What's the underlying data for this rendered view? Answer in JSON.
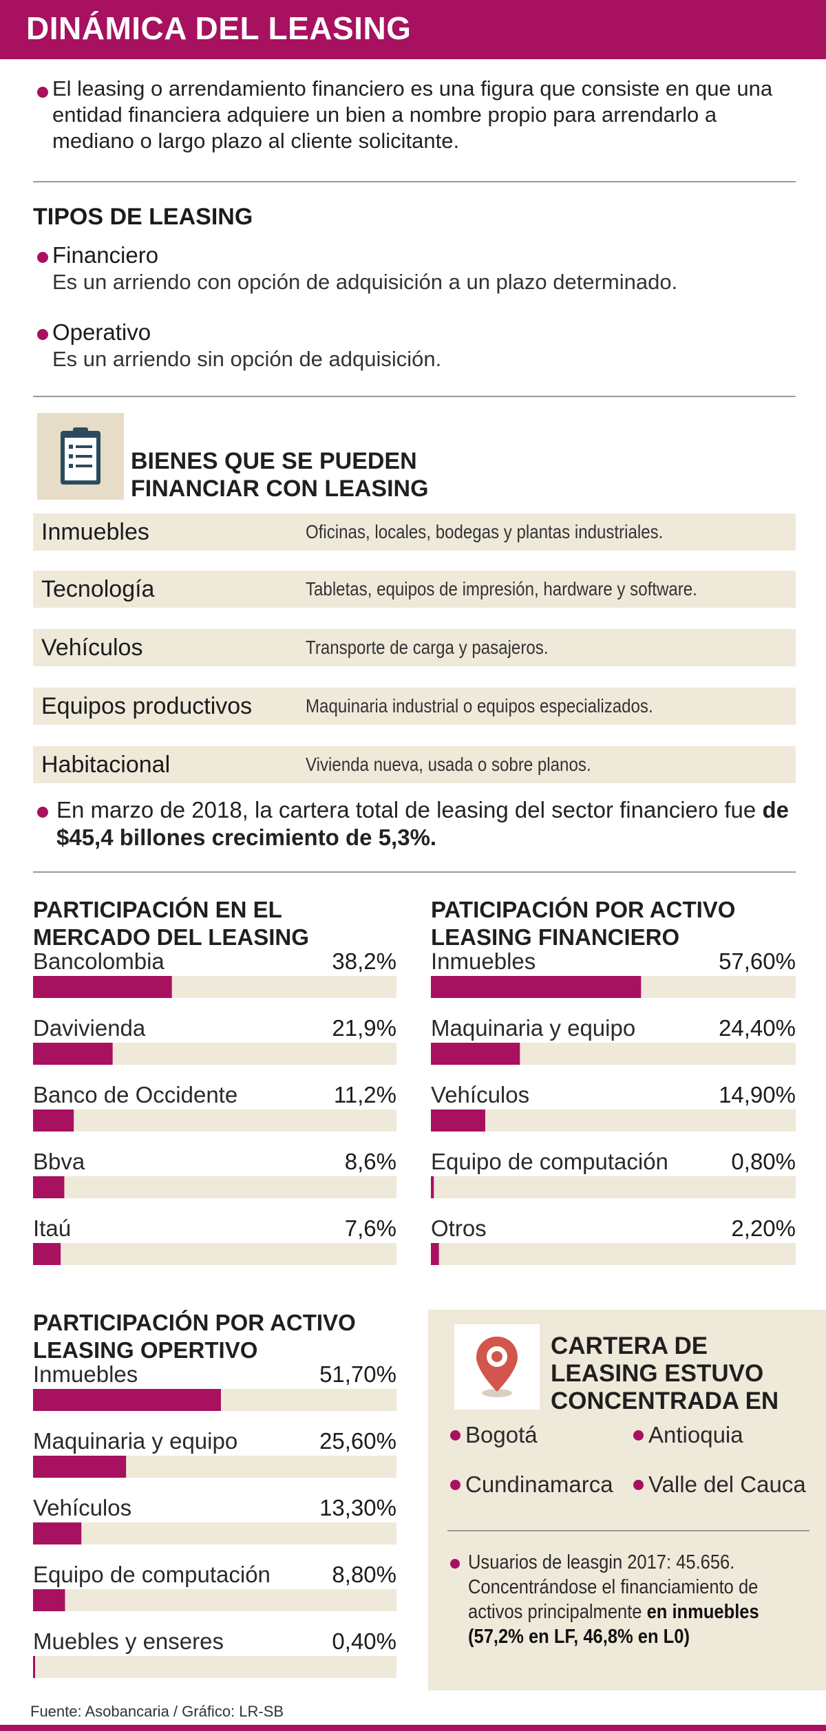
{
  "header": {
    "title": "DINÁMICA DEL LEASING"
  },
  "intro": {
    "text": "El leasing o arrendamiento financiero es una figura que consiste en que una entidad financiera adquiere un bien a nombre propio para arrendarlo a mediano o largo plazo al cliente solicitante."
  },
  "tipos": {
    "title": "TIPOS DE LEASING",
    "items": [
      {
        "name": "Financiero",
        "desc": "Es un arriendo con opción de adquisición a un plazo determinado."
      },
      {
        "name": "Operativo",
        "desc": "Es un arriendo sin opción de adquisición."
      }
    ]
  },
  "bienes": {
    "title_line1": "BIENES QUE SE PUEDEN",
    "title_line2": "FINANCIAR CON LEASING",
    "icon": "clipboard-icon",
    "rows": [
      {
        "category": "Inmuebles",
        "description": "Oficinas, locales, bodegas y plantas industriales."
      },
      {
        "category": "Tecnología",
        "description": "Tabletas, equipos de impresión, hardware y software."
      },
      {
        "category": "Vehículos",
        "description": "Transporte de carga y pasajeros."
      },
      {
        "category": "Equipos productivos",
        "description": "Maquinaria industrial o equipos especializados."
      },
      {
        "category": "Habitacional",
        "description": "Vivienda nueva, usada o sobre planos."
      }
    ]
  },
  "cartera": {
    "text_a": "En marzo de 2018, la cartera total de leasing del sector financiero fue ",
    "text_b": "de $45,4 billones crecimiento de",
    "text_c": "  5,3%."
  },
  "chart_data": [
    {
      "type": "bar",
      "title": "PARTICIPACIÓN EN EL MERCADO DEL LEASING",
      "title_line1": "PARTICIPACIÓN EN EL",
      "title_line2": "MERCADO DEL LEASING",
      "categories": [
        "Bancolombia",
        "Davivienda",
        "Banco de Occidente",
        "Bbva",
        "Itaú"
      ],
      "values": [
        38.2,
        21.9,
        11.2,
        8.6,
        7.6
      ],
      "labels": [
        "38,2%",
        "21,9%",
        "11,2%",
        "8,6%",
        "7,6%"
      ],
      "ylim": [
        0,
        100
      ],
      "orientation": "horizontal"
    },
    {
      "type": "bar",
      "title": "PATICIPACIÓN POR ACTIVO LEASING FINANCIERO",
      "title_line1": "PATICIPACIÓN POR ACTIVO",
      "title_line2": "LEASING FINANCIERO",
      "categories": [
        "Inmuebles",
        "Maquinaria y equipo",
        "Vehículos",
        "Equipo de computación",
        "Otros"
      ],
      "values": [
        57.6,
        24.4,
        14.9,
        0.8,
        2.2
      ],
      "labels": [
        "57,60%",
        "24,40%",
        "14,90%",
        "0,80%",
        "2,20%"
      ],
      "ylim": [
        0,
        100
      ],
      "orientation": "horizontal"
    },
    {
      "type": "bar",
      "title": "PARTICIPACIÓN POR ACTIVO LEASING OPERTIVO",
      "title_line1": "PARTICIPACIÓN POR ACTIVO",
      "title_line2": "LEASING OPERTIVO",
      "categories": [
        "Inmuebles",
        "Maquinaria y equipo",
        "Vehículos",
        "Equipo de computación",
        "Muebles y enseres"
      ],
      "values": [
        51.7,
        25.6,
        13.3,
        8.8,
        0.4
      ],
      "labels": [
        "51,70%",
        "25,60%",
        "13,30%",
        "8,80%",
        "0,40%"
      ],
      "ylim": [
        0,
        100
      ],
      "orientation": "horizontal"
    }
  ],
  "concentracion": {
    "title_line1": "CARTERA DE",
    "title_line2": "LEASING ESTUVO",
    "title_line3": "CONCENTRADA EN",
    "icon": "map-pin-icon",
    "regions": [
      "Bogotá",
      "Antioquia",
      "Cundinamarca",
      "Valle del Cauca"
    ],
    "usuarios_a": "Usuarios de leasgin 2017: 45.656. Concentrándose el financiamiento de activos principalmente ",
    "usuarios_b": "en inmuebles (57,2% en LF, 46,8% en L0)"
  },
  "source": "Fuente: Asobancaria / Gráfico: LR-SB",
  "colors": {
    "accent": "#a7115f",
    "track": "#efe9da",
    "icon_bg": "#e6dcc7",
    "pin": "#d2564b"
  }
}
